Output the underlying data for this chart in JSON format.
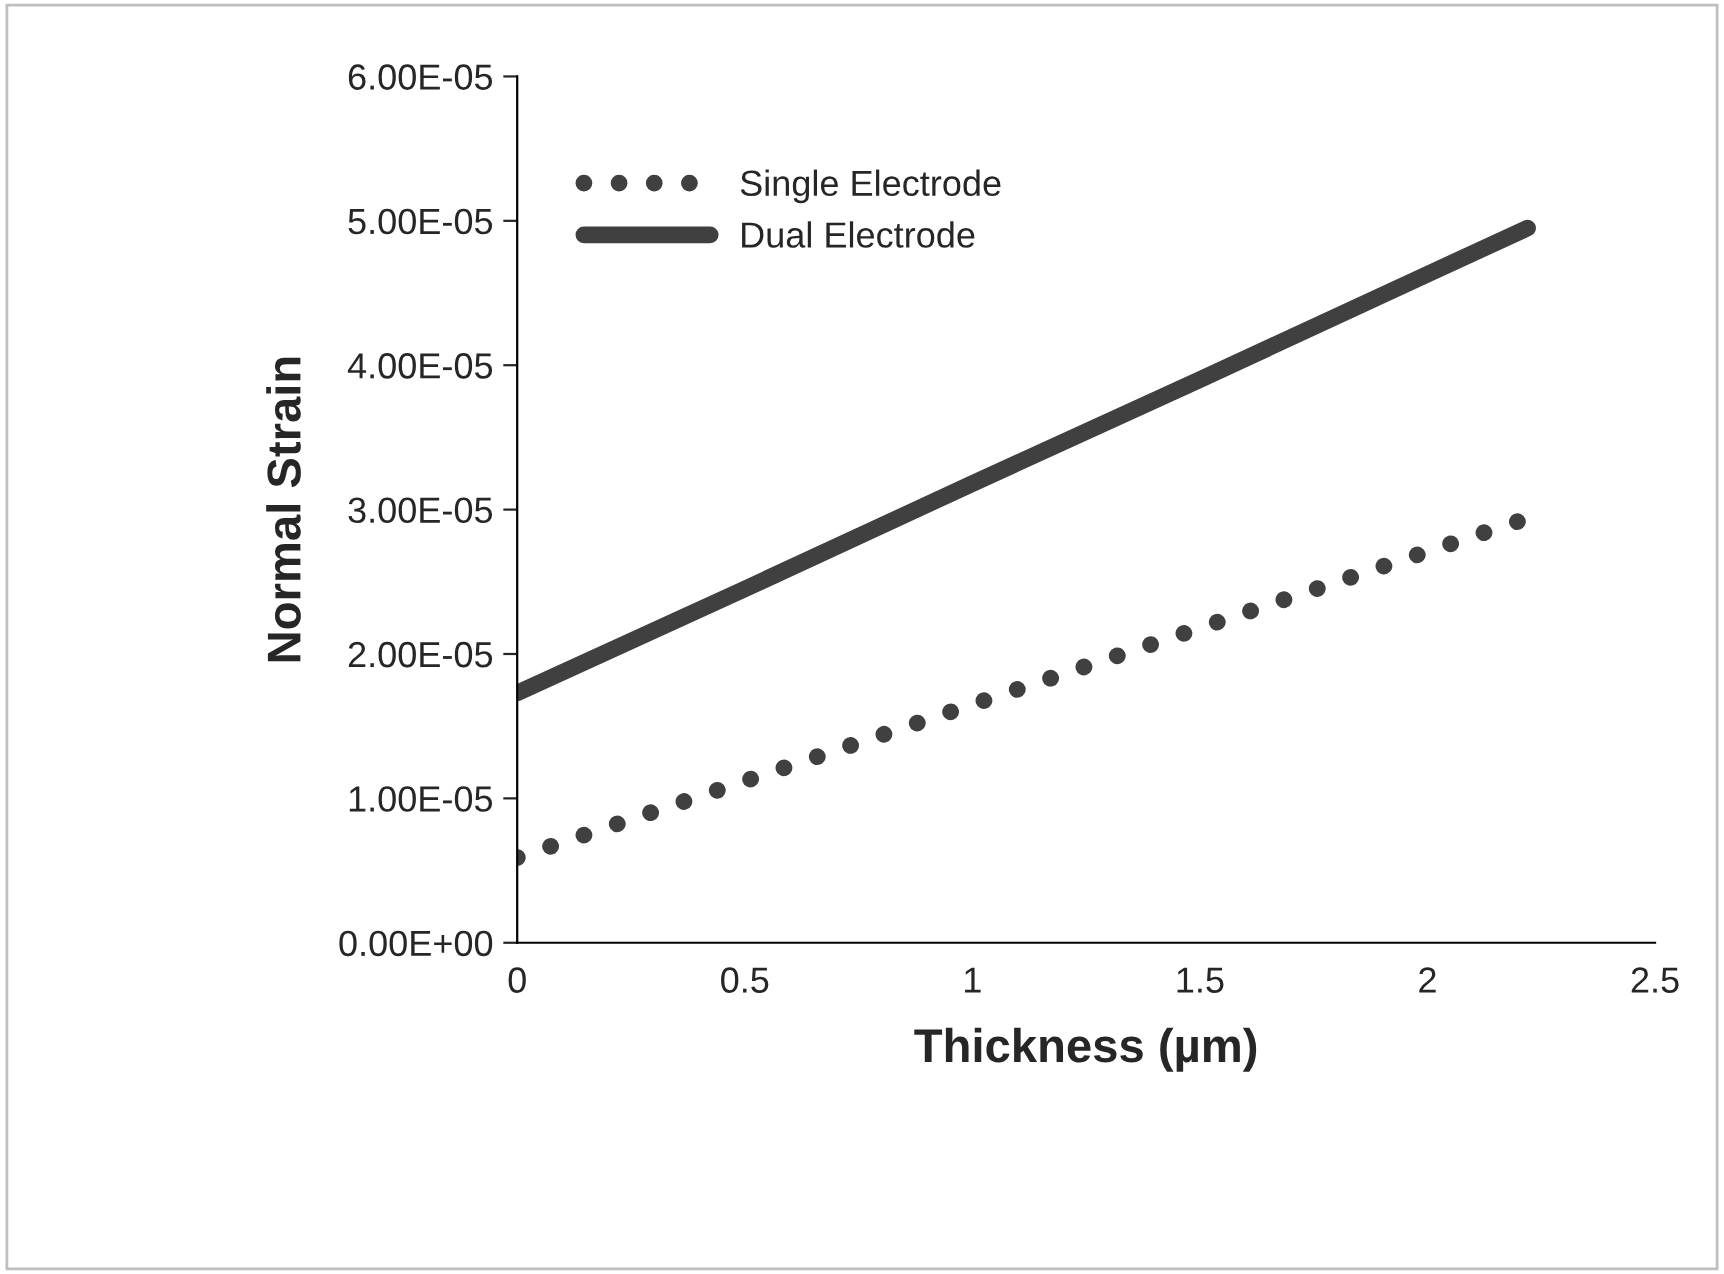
{
  "chart_data": {
    "type": "line",
    "xlabel": "Thickness (µm)",
    "ylabel": "Normal Strain",
    "series": [
      {
        "name": "Single Electrode",
        "color": "#404040",
        "line_style": "dotted",
        "x": [
          0,
          0.5,
          1,
          1.5,
          2,
          2.22
        ],
        "values": [
          5.9e-06,
          1.12e-05,
          1.65e-05,
          2.18e-05,
          2.71e-05,
          2.94e-05
        ]
      },
      {
        "name": "Dual Electrode",
        "color": "#404040",
        "line_style": "solid",
        "x": [
          0,
          0.5,
          1,
          1.5,
          2,
          2.22
        ],
        "values": [
          1.73e-05,
          2.45e-05,
          3.18e-05,
          3.9e-05,
          4.63e-05,
          4.95e-05
        ]
      }
    ],
    "xlim": [
      0,
      2.5
    ],
    "xticks": [
      0,
      0.5,
      1,
      1.5,
      2,
      2.5
    ],
    "ylim": [
      0,
      6e-05
    ],
    "yticks": [
      {
        "value": 0,
        "label": "0.00E+00"
      },
      {
        "value": 1e-05,
        "label": "1.00E-05"
      },
      {
        "value": 2e-05,
        "label": "2.00E-05"
      },
      {
        "value": 3e-05,
        "label": "3.00E-05"
      },
      {
        "value": 4e-05,
        "label": "4.00E-05"
      },
      {
        "value": 5e-05,
        "label": "5.00E-05"
      },
      {
        "value": 6e-05,
        "label": "6.00E-05"
      }
    ],
    "grid": false,
    "legend": "top left"
  }
}
